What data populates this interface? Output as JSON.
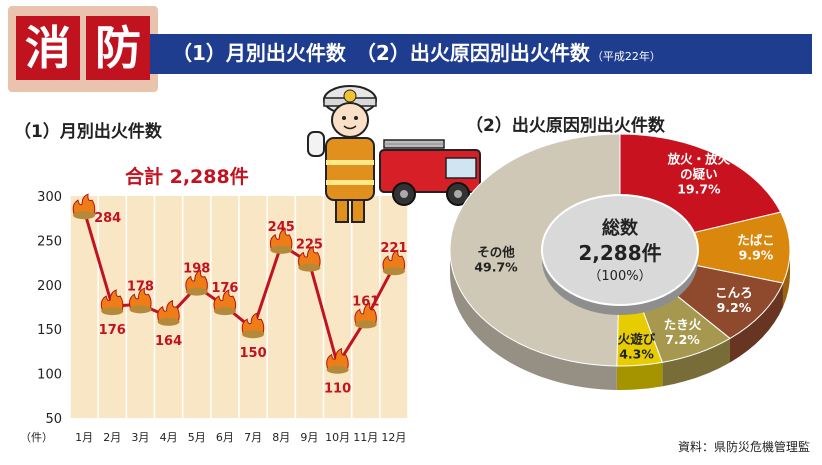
{
  "header": {
    "kanji": [
      "消",
      "防"
    ],
    "title": "（1）月別出火件数　（2）出火原因別出火件数",
    "year": "（平成22年）"
  },
  "section1_title": "（1）月別出火件数",
  "section2_title": "（2）出火原因別出火件数",
  "total_label": "合計 2,288件",
  "source": "資料：県防災危機管理監",
  "donut_center": {
    "label": "総数",
    "value": "2,288件",
    "percent": "（100%）"
  },
  "colors": {
    "accent": "#c1121f",
    "band": "#1f3d8f",
    "chart_bg": "#f9e6c4",
    "line": "#c1121f"
  },
  "chart_data": [
    {
      "type": "line",
      "title": "（1）月別出火件数",
      "categories": [
        "1月",
        "2月",
        "3月",
        "4月",
        "5月",
        "6月",
        "7月",
        "8月",
        "9月",
        "10月",
        "11月",
        "12月"
      ],
      "values": [
        284,
        176,
        178,
        164,
        198,
        176,
        150,
        245,
        225,
        110,
        161,
        221
      ],
      "y_unit": "（件）",
      "yticks": [
        50,
        100,
        150,
        200,
        250,
        300
      ],
      "ylim": [
        50,
        300
      ],
      "grid": "vertical"
    },
    {
      "type": "pie",
      "title": "（2）出火原因別出火件数",
      "slices": [
        {
          "name": "放火・放火の疑い",
          "label_lines": [
            "放火・放火",
            "の疑い"
          ],
          "value": 19.7,
          "label": "19.7%",
          "color": "#c8121f"
        },
        {
          "name": "たばこ",
          "label_lines": [
            "たばこ"
          ],
          "value": 9.9,
          "label": "9.9%",
          "color": "#d9870d"
        },
        {
          "name": "こんろ",
          "label_lines": [
            "こんろ"
          ],
          "value": 9.2,
          "label": "9.2%",
          "color": "#8f4a2e"
        },
        {
          "name": "たき火",
          "label_lines": [
            "たき火"
          ],
          "value": 7.2,
          "label": "7.2%",
          "color": "#a6984e"
        },
        {
          "name": "火遊び",
          "label_lines": [
            "火遊び"
          ],
          "value": 4.3,
          "label": "4.3%",
          "color": "#e6cc00"
        },
        {
          "name": "その他",
          "label_lines": [
            "その他"
          ],
          "value": 49.7,
          "label": "49.7%",
          "color": "#cfc8b6"
        }
      ]
    }
  ]
}
